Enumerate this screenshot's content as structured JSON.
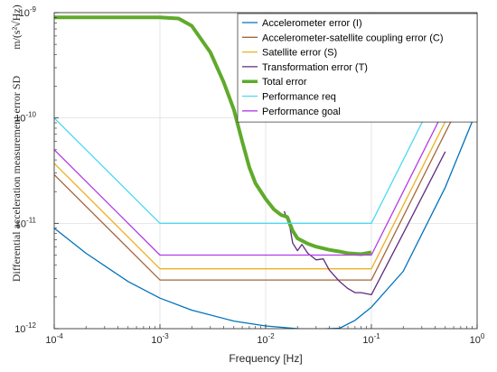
{
  "chart_data": {
    "type": "line",
    "xscale": "log",
    "yscale": "log",
    "xlim": [
      0.0001,
      1
    ],
    "ylim": [
      1e-12,
      1e-09
    ],
    "xlabel": "Frequency [Hz]",
    "ylabel": "Differential acceleration measurement error SD",
    "ylabel_unit": "m/(s²√Hz)",
    "grid": true,
    "legend_position": "top-right",
    "x_ticks": [
      0.0001,
      0.001,
      0.01,
      0.1,
      1
    ],
    "y_ticks": [
      1e-12,
      1e-11,
      1e-10,
      1e-09
    ],
    "series": [
      {
        "name": "Accelerometer error (I)",
        "color": "#0072BD",
        "width": 1.3,
        "x": [
          0.0001,
          0.0002,
          0.0005,
          0.001,
          0.002,
          0.005,
          0.01,
          0.02,
          0.03,
          0.05,
          0.07,
          0.1,
          0.2,
          0.5,
          1
        ],
        "y": [
          9e-12,
          5.2e-12,
          2.8e-12,
          1.95e-12,
          1.5e-12,
          1.18e-12,
          1.06e-12,
          1e-12,
          9.9e-13,
          1.01e-12,
          1.2e-12,
          1.6e-12,
          3.5e-12,
          2.2e-11,
          1.2e-10
        ]
      },
      {
        "name": "Accelerometer-satellite coupling error (C)",
        "color": "#A2683A",
        "width": 1.3,
        "x": [
          0.0001,
          0.001,
          0.1,
          1
        ],
        "y": [
          2.9e-11,
          2.9e-12,
          2.9e-12,
          2.9e-10
        ]
      },
      {
        "name": "Satellite error (S)",
        "color": "#EDB120",
        "width": 1.3,
        "x": [
          0.0001,
          0.001,
          0.1,
          1
        ],
        "y": [
          3.7e-11,
          3.7e-12,
          3.7e-12,
          3.7e-10
        ]
      },
      {
        "name": "Transformation error (T)",
        "color": "#5E2B7E",
        "width": 1.3,
        "x": [
          0.015,
          0.017,
          0.018,
          0.02,
          0.022,
          0.025,
          0.03,
          0.035,
          0.04,
          0.05,
          0.06,
          0.07,
          0.08,
          0.1,
          0.2,
          0.5
        ],
        "y": [
          1.3e-11,
          9e-12,
          6.5e-12,
          5.5e-12,
          6.3e-12,
          5.2e-12,
          4.5e-12,
          4.6e-12,
          3.6e-12,
          2.8e-12,
          2.4e-12,
          2.2e-12,
          2.2e-12,
          2.1e-12,
          8e-12,
          4.8e-11
        ]
      },
      {
        "name": "Total error",
        "color": "#5FAA2B",
        "width": 4,
        "x": [
          0.0001,
          0.0005,
          0.001,
          0.0015,
          0.002,
          0.003,
          0.004,
          0.005,
          0.006,
          0.007,
          0.008,
          0.01,
          0.012,
          0.014,
          0.016,
          0.018,
          0.02,
          0.025,
          0.03,
          0.04,
          0.05,
          0.06,
          0.08,
          0.1
        ],
        "y": [
          9e-10,
          9e-10,
          9e-10,
          8.8e-10,
          7.5e-10,
          4.2e-10,
          2.2e-10,
          1.2e-10,
          6e-11,
          3.4e-11,
          2.4e-11,
          1.7e-11,
          1.35e-11,
          1.2e-11,
          1.15e-11,
          8.5e-12,
          7.2e-12,
          6.4e-12,
          6e-12,
          5.6e-12,
          5.4e-12,
          5.2e-12,
          5.1e-12,
          5.3e-12
        ]
      },
      {
        "name": "Performance req",
        "color": "#4DD9F0",
        "width": 1.3,
        "x": [
          0.0001,
          0.001,
          0.1,
          1
        ],
        "y": [
          1e-10,
          1e-11,
          1e-11,
          1e-09
        ]
      },
      {
        "name": "Performance goal",
        "color": "#B43CE6",
        "width": 1.3,
        "x": [
          0.0001,
          0.001,
          0.1,
          1
        ],
        "y": [
          5e-11,
          5e-12,
          5e-12,
          5e-10
        ]
      }
    ]
  }
}
